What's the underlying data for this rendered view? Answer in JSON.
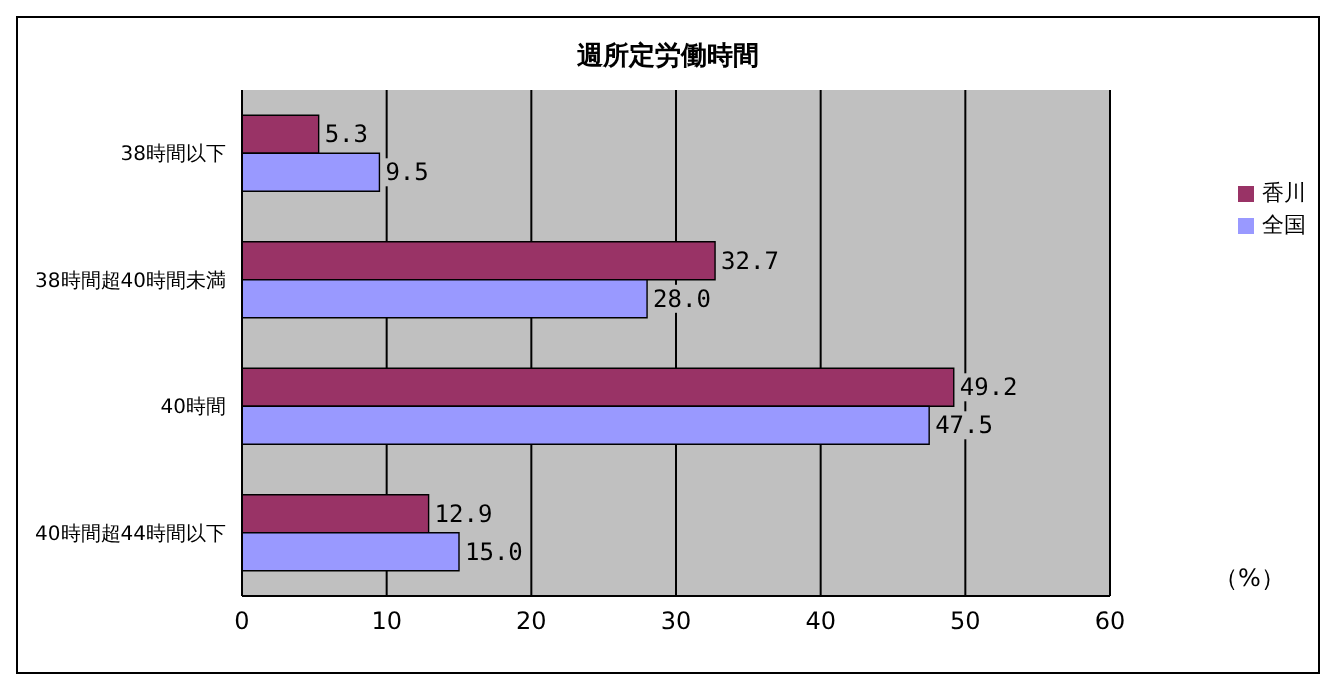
{
  "chart_data": {
    "type": "bar",
    "orientation": "horizontal",
    "title": "週所定労働時間",
    "categories": [
      "38時間以下",
      "38時間超40時間未満",
      "40時間",
      "40時間超44時間以下"
    ],
    "series": [
      {
        "name": "香川",
        "color": "#993366",
        "values": [
          5.3,
          32.7,
          49.2,
          12.9
        ],
        "value_labels": [
          "5.3",
          "32.7",
          "49.2",
          "12.9"
        ]
      },
      {
        "name": "全国",
        "color": "#9999ff",
        "values": [
          9.5,
          28.0,
          47.5,
          15.0
        ],
        "value_labels": [
          "9.5",
          "28.0",
          "47.5",
          "15.0"
        ]
      }
    ],
    "xlim": [
      0,
      60
    ],
    "xticks": [
      0,
      10,
      20,
      30,
      40,
      50,
      60
    ],
    "grid": "x",
    "legend": "right",
    "annotations": [
      "（%）"
    ]
  }
}
